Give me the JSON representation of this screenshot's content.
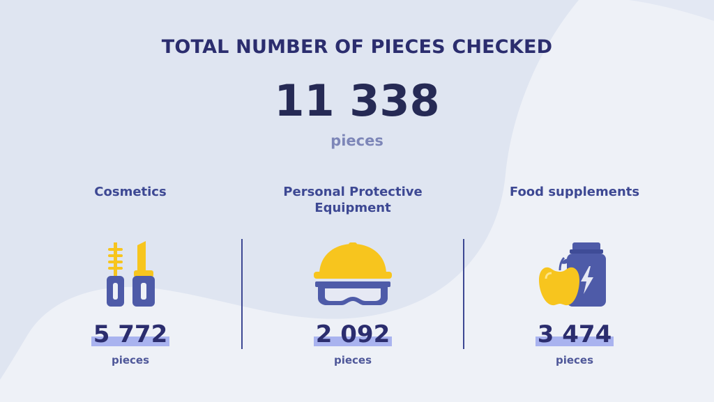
{
  "colors": {
    "background": "#eef1f7",
    "blob": "#dfe5f1",
    "title": "#2b2d6e",
    "highlight": "#a9b3ef",
    "icon_blue": "#4e5ba8",
    "icon_yellow": "#f7c51e"
  },
  "header": {
    "title": "TOTAL NUMBER OF PIECES CHECKED",
    "total_value": "11 338",
    "total_unit": "pieces"
  },
  "categories": [
    {
      "label": "Cosmetics",
      "icon": "mascara-lipstick-icon",
      "value": "5 772",
      "unit": "pieces"
    },
    {
      "label": "Personal Protective Equipment",
      "icon": "hard-hat-goggles-icon",
      "value": "2 092",
      "unit": "pieces"
    },
    {
      "label": "Food supplements",
      "icon": "supplement-jar-apple-icon",
      "value": "3 474",
      "unit": "pieces"
    }
  ]
}
